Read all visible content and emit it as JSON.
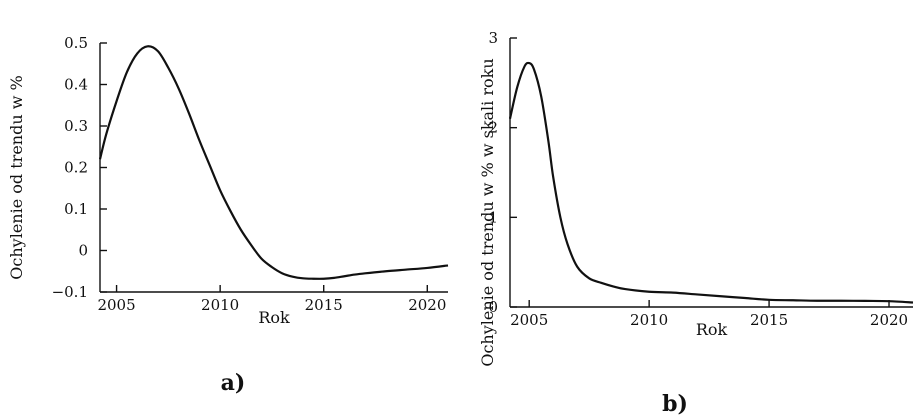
{
  "chart_data": [
    {
      "type": "line",
      "panel_label": "a)",
      "xlabel": "Rok",
      "ylabel": "Ochylenie od trendu w %",
      "xlim": [
        2004.2,
        2021
      ],
      "ylim": [
        -0.1,
        0.5
      ],
      "xticks": [
        "2005",
        "2010",
        "2015",
        "2020"
      ],
      "xtick_values": [
        2005,
        2010,
        2015,
        2020
      ],
      "yticks": [
        "0.5",
        "0.4",
        "0.3",
        "0.2",
        "0.1",
        "0",
        "−0.1"
      ],
      "ytick_values": [
        0.5,
        0.4,
        0.3,
        0.2,
        0.1,
        0,
        -0.1
      ],
      "grid": false,
      "series": [
        {
          "x": [
            2004.2,
            2004.5,
            2005.0,
            2005.5,
            2006.0,
            2006.5,
            2007.0,
            2007.5,
            2008.0,
            2008.5,
            2009.0,
            2009.5,
            2010.0,
            2010.5,
            2011.0,
            2011.5,
            2012.0,
            2012.5,
            2013.0,
            2013.5,
            2014.0,
            2014.5,
            2015.0,
            2015.5,
            2016.0,
            2016.5,
            2017.0,
            2018.0,
            2019.0,
            2020.0,
            2021.0
          ],
          "y": [
            0.22,
            0.28,
            0.36,
            0.43,
            0.475,
            0.492,
            0.48,
            0.44,
            0.39,
            0.33,
            0.265,
            0.205,
            0.145,
            0.095,
            0.05,
            0.013,
            -0.02,
            -0.04,
            -0.055,
            -0.063,
            -0.067,
            -0.068,
            -0.068,
            -0.066,
            -0.062,
            -0.058,
            -0.055,
            -0.05,
            -0.046,
            -0.042,
            -0.036
          ]
        }
      ]
    },
    {
      "type": "line",
      "panel_label": "b)",
      "xlabel": "Rok",
      "ylabel": "Ochylenie od trendu w % w skali roku",
      "xlim": [
        2004.2,
        2021
      ],
      "ylim": [
        0,
        3
      ],
      "xticks": [
        "2005",
        "2010",
        "2015",
        "2020"
      ],
      "xtick_values": [
        2005,
        2010,
        2015,
        2020
      ],
      "yticks": [
        "3",
        "2",
        "1",
        "0"
      ],
      "ytick_values": [
        3,
        2,
        1,
        0
      ],
      "grid": false,
      "series": [
        {
          "x": [
            2004.2,
            2004.5,
            2004.8,
            2005.0,
            2005.2,
            2005.5,
            2005.8,
            2006.0,
            2006.3,
            2006.6,
            2007.0,
            2007.5,
            2008.0,
            2008.5,
            2009.0,
            2010.0,
            2011.0,
            2012.0,
            2013.0,
            2014.0,
            2015.0,
            2016.0,
            2017.0,
            2018.0,
            2019.0,
            2020.0,
            2021.0
          ],
          "y": [
            2.1,
            2.45,
            2.68,
            2.72,
            2.65,
            2.35,
            1.85,
            1.45,
            1.0,
            0.7,
            0.45,
            0.32,
            0.27,
            0.23,
            0.2,
            0.17,
            0.16,
            0.14,
            0.12,
            0.1,
            0.08,
            0.075,
            0.07,
            0.07,
            0.068,
            0.065,
            0.05
          ]
        }
      ]
    }
  ]
}
